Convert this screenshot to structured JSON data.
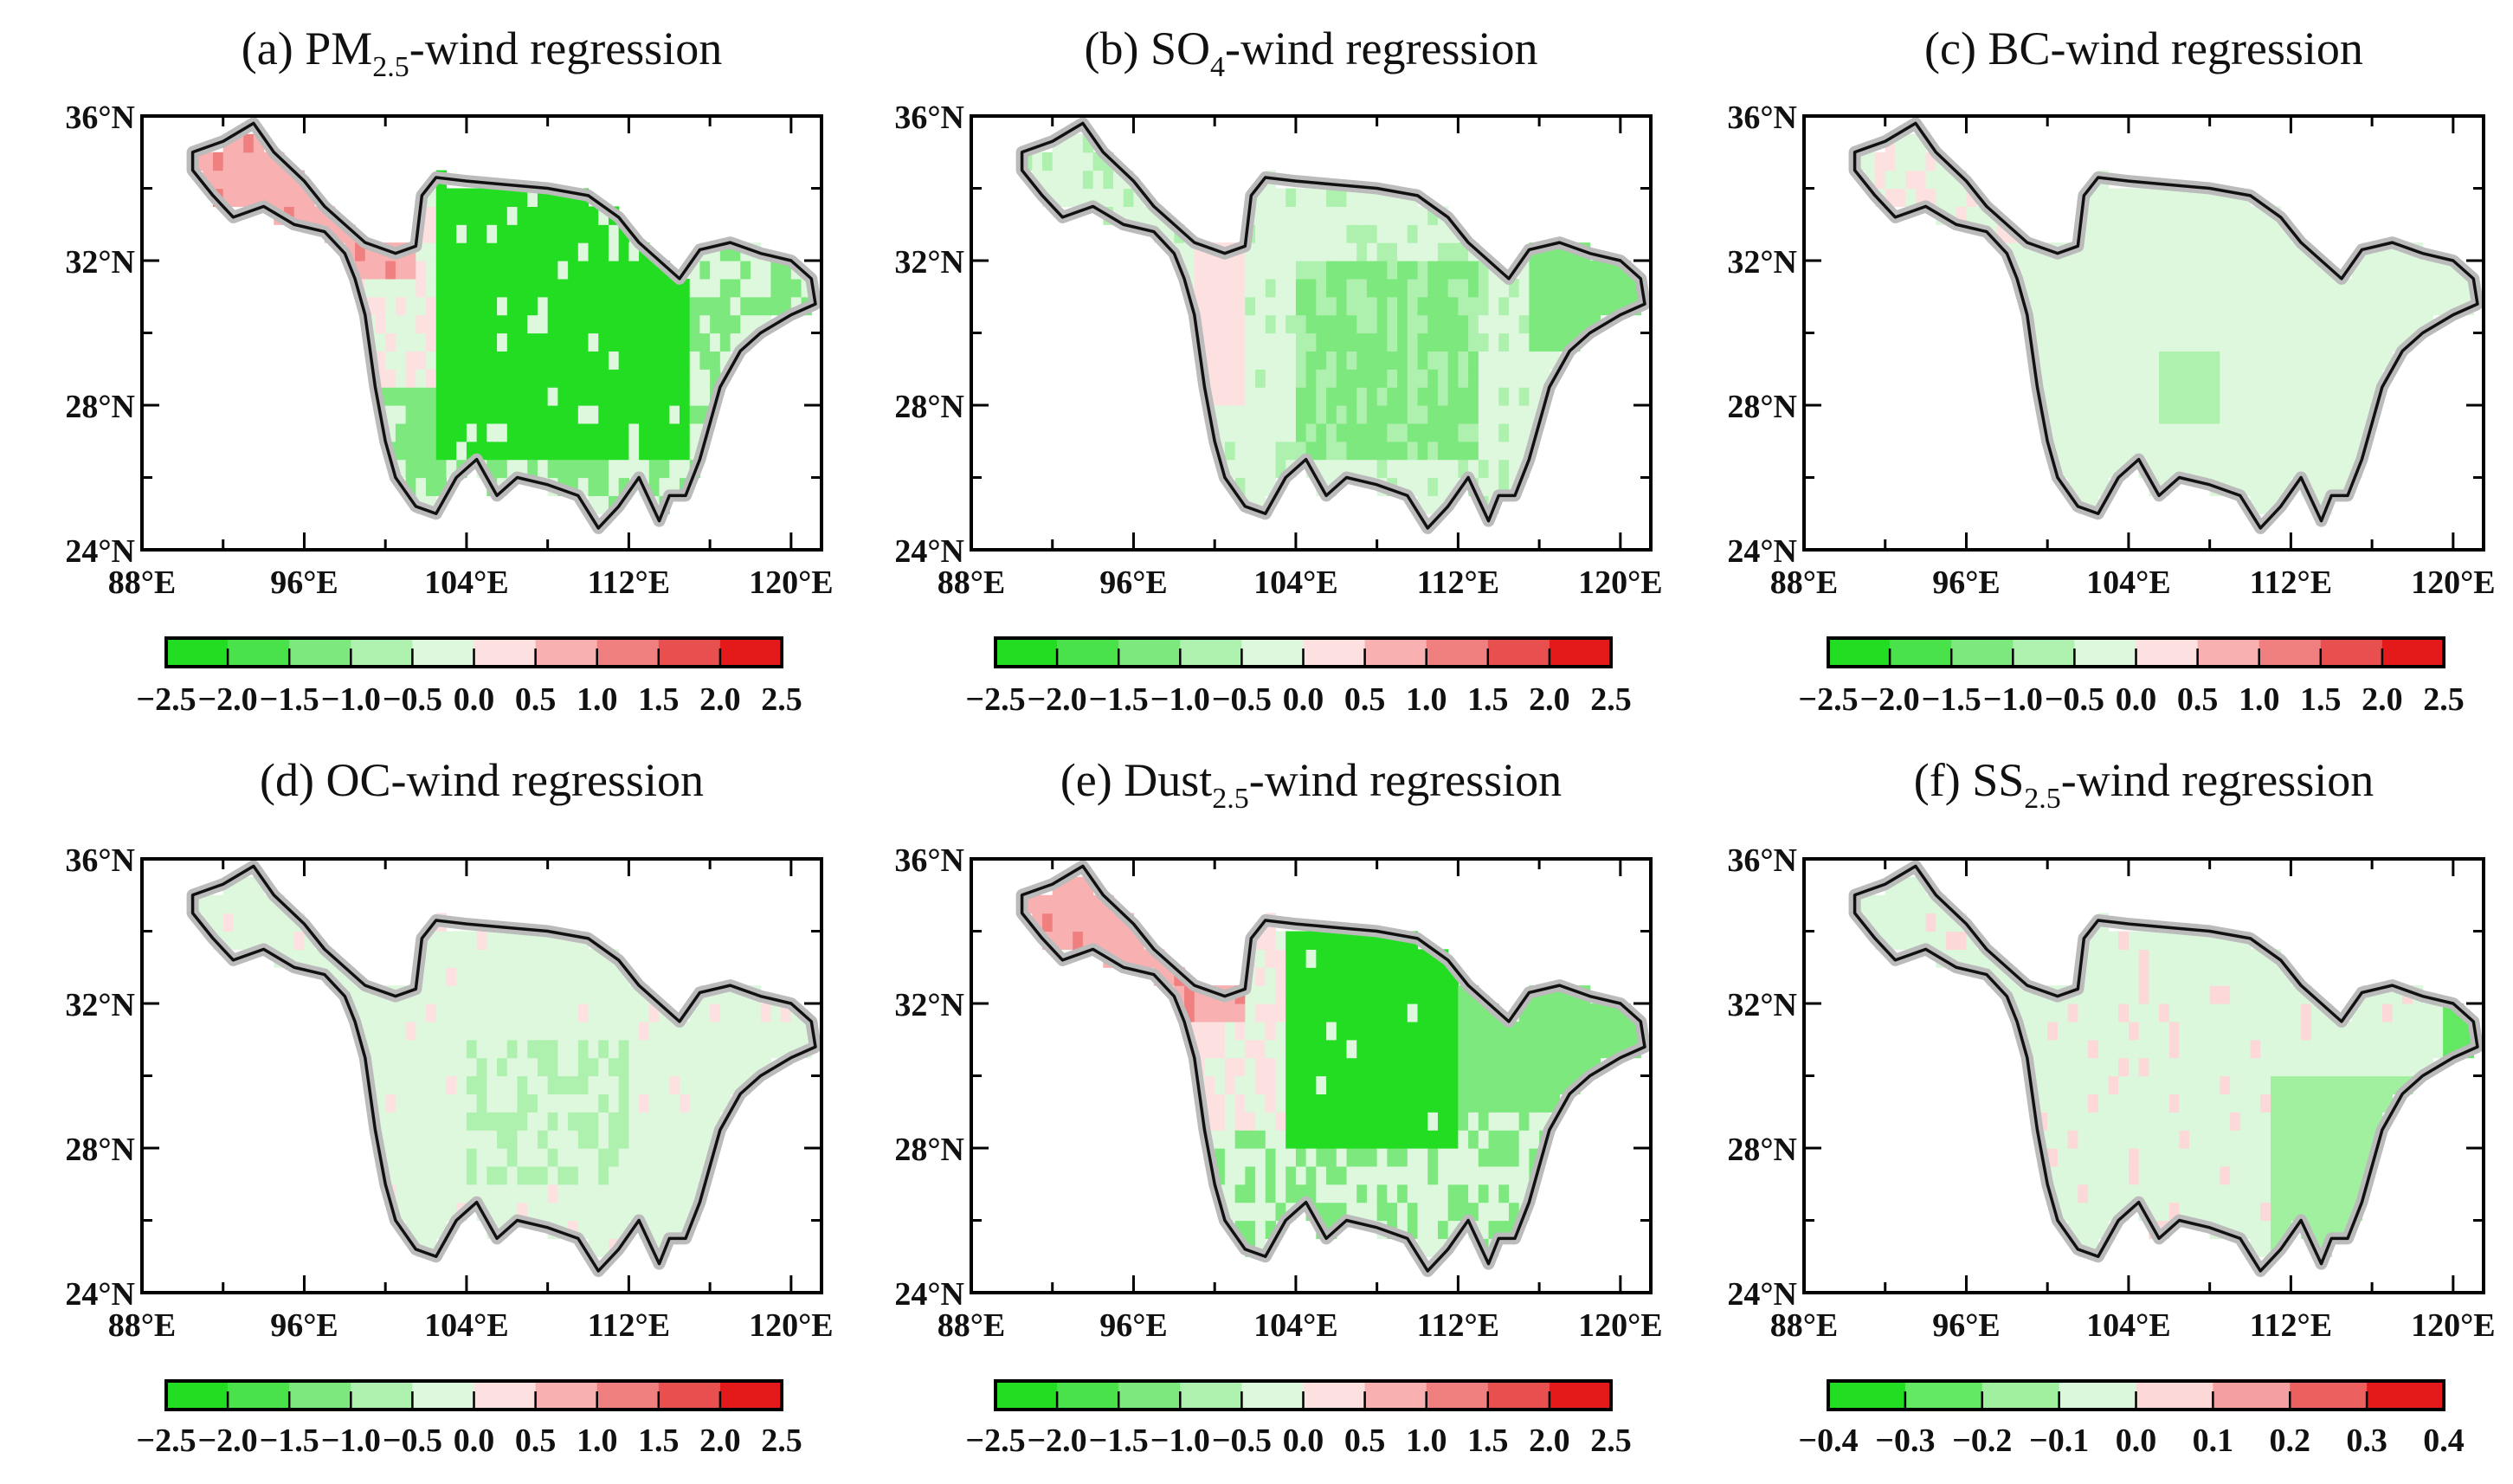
{
  "figure": {
    "panels": [
      {
        "id": "a",
        "title_prefix": "(a) PM",
        "title_sub": "2.5",
        "title_suffix": "-wind regression",
        "colorbar_labels": [
          "−2.5",
          "−2.0",
          "−1.5",
          "−1.0",
          "−0.5",
          "0.0",
          "0.5",
          "1.0",
          "1.5",
          "2.0",
          "2.5"
        ]
      },
      {
        "id": "b",
        "title_prefix": "(b) SO",
        "title_sub": "4",
        "title_suffix": "-wind regression",
        "colorbar_labels": [
          "−2.5",
          "−2.0",
          "−1.5",
          "−1.0",
          "−0.5",
          "0.0",
          "0.5",
          "1.0",
          "1.5",
          "2.0",
          "2.5"
        ]
      },
      {
        "id": "c",
        "title_prefix": "(c) BC-wind regression",
        "title_sub": "",
        "title_suffix": "",
        "colorbar_labels": [
          "−2.5",
          "−2.0",
          "−1.5",
          "−1.0",
          "−0.5",
          "0.0",
          "0.5",
          "1.0",
          "1.5",
          "2.0",
          "2.5"
        ]
      },
      {
        "id": "d",
        "title_prefix": "(d) OC-wind regression",
        "title_sub": "",
        "title_suffix": "",
        "colorbar_labels": [
          "−2.5",
          "−2.0",
          "−1.5",
          "−1.0",
          "−0.5",
          "0.0",
          "0.5",
          "1.0",
          "1.5",
          "2.0",
          "2.5"
        ]
      },
      {
        "id": "e",
        "title_prefix": "(e) Dust",
        "title_sub": "2.5",
        "title_suffix": "-wind regression",
        "colorbar_labels": [
          "−2.5",
          "−2.0",
          "−1.5",
          "−1.0",
          "−0.5",
          "0.0",
          "0.5",
          "1.0",
          "1.5",
          "2.0",
          "2.5"
        ]
      },
      {
        "id": "f",
        "title_prefix": "(f) SS",
        "title_sub": "2.5",
        "title_suffix": "-wind regression",
        "colorbar_labels": [
          "−0.4",
          "−0.3",
          "−0.2",
          "−0.1",
          "0.0",
          "0.1",
          "0.2",
          "0.3",
          "0.4"
        ]
      }
    ],
    "lat_ticks": [
      "36°N",
      "32°N",
      "28°N",
      "24°N"
    ],
    "lon_ticks": [
      "88°E",
      "96°E",
      "104°E",
      "112°E",
      "120°E"
    ],
    "lon_range": [
      88,
      121.5
    ],
    "lat_range": [
      24,
      36
    ],
    "colors_10": [
      "#22dd22",
      "#4ae24a",
      "#7de87d",
      "#aef0ae",
      "#def8de",
      "#fde0e0",
      "#f8b0b0",
      "#f08080",
      "#e85050",
      "#e41a1a"
    ],
    "colors_8": [
      "#22dd22",
      "#62e862",
      "#a0f0a0",
      "#dcf8dc",
      "#fdd8d8",
      "#f4a0a0",
      "#ec6060",
      "#e41a1a"
    ]
  }
}
